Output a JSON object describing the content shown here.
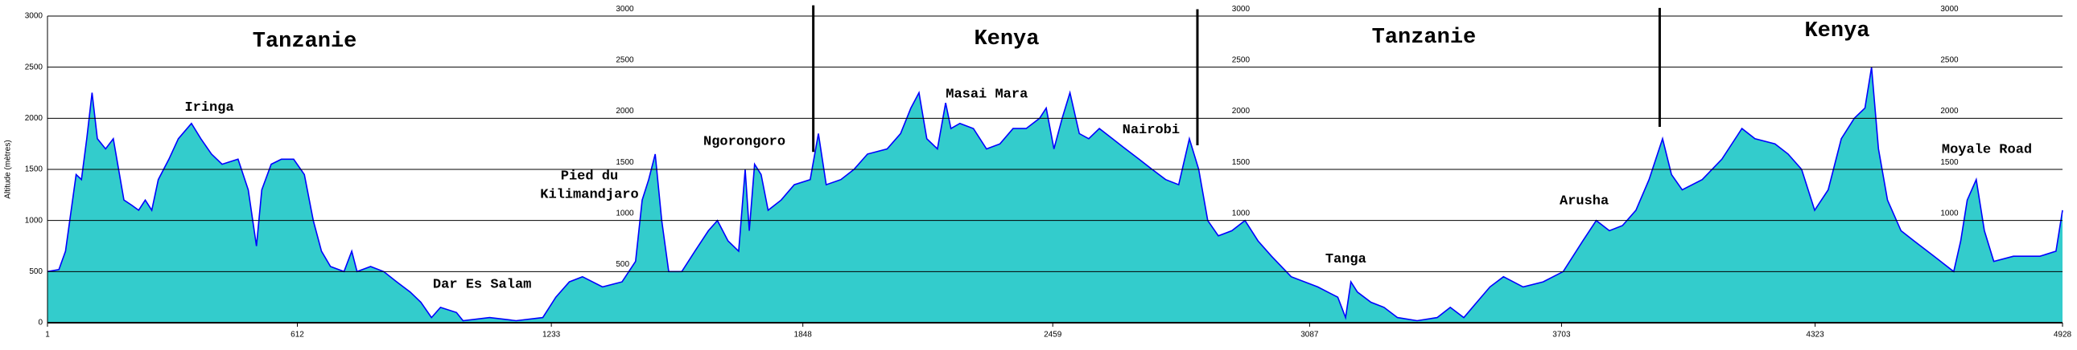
{
  "chart_data": {
    "type": "area",
    "y_label": "Altitude (mètres)",
    "color": "#33cccc",
    "line_color": "#0000ff",
    "grid": true,
    "xlim": [
      1,
      4928
    ],
    "ylim": [
      0,
      3000
    ],
    "yticks": [
      0,
      500,
      1000,
      1500,
      2000,
      2500,
      3000
    ],
    "xticks": [
      1,
      612,
      1233,
      1848,
      2459,
      3087,
      3703,
      4323,
      4928
    ],
    "x": [
      1,
      29,
      45,
      71,
      84,
      97,
      110,
      123,
      143,
      162,
      175,
      188,
      207,
      224,
      240,
      256,
      272,
      298,
      321,
      353,
      376,
      402,
      428,
      467,
      492,
      512,
      525,
      548,
      573,
      603,
      629,
      651,
      671,
      693,
      726,
      745,
      758,
      791,
      823,
      855,
      888,
      914,
      940,
      962,
      1001,
      1017,
      1082,
      1147,
      1212,
      1244,
      1277,
      1309,
      1358,
      1406,
      1439,
      1455,
      1471,
      1487,
      1503,
      1520,
      1552,
      1584,
      1617,
      1639,
      1665,
      1691,
      1707,
      1717,
      1730,
      1746,
      1763,
      1795,
      1827,
      1866,
      1886,
      1905,
      1941,
      1973,
      2006,
      2054,
      2087,
      2112,
      2132,
      2151,
      2177,
      2197,
      2210,
      2232,
      2265,
      2297,
      2330,
      2362,
      2394,
      2427,
      2443,
      2462,
      2482,
      2501,
      2524,
      2547,
      2573,
      2605,
      2637,
      2670,
      2702,
      2735,
      2767,
      2793,
      2816,
      2838,
      2864,
      2897,
      2929,
      2961,
      2994,
      3042,
      3107,
      3156,
      3175,
      3188,
      3204,
      3237,
      3269,
      3302,
      3350,
      3399,
      3431,
      3464,
      3496,
      3528,
      3561,
      3609,
      3658,
      3707,
      3755,
      3788,
      3820,
      3852,
      3885,
      3917,
      3950,
      3972,
      3998,
      4047,
      4095,
      4144,
      4176,
      4225,
      4257,
      4290,
      4322,
      4355,
      4387,
      4419,
      4445,
      4461,
      4478,
      4500,
      4533,
      4565,
      4614,
      4662,
      4679,
      4695,
      4717,
      4737,
      4760,
      4808,
      4873,
      4912,
      4928
    ],
    "values": [
      500,
      520,
      700,
      1450,
      1400,
      1800,
      2250,
      1800,
      1700,
      1800,
      1500,
      1200,
      1150,
      1100,
      1200,
      1100,
      1400,
      1600,
      1800,
      1950,
      1800,
      1650,
      1550,
      1600,
      1300,
      750,
      1300,
      1550,
      1600,
      1600,
      1450,
      1000,
      700,
      550,
      500,
      700,
      500,
      550,
      500,
      400,
      300,
      200,
      50,
      150,
      100,
      20,
      50,
      20,
      50,
      250,
      400,
      450,
      350,
      400,
      600,
      1200,
      1400,
      1650,
      1000,
      500,
      500,
      700,
      900,
      1000,
      800,
      700,
      1500,
      900,
      1550,
      1450,
      1100,
      1200,
      1350,
      1400,
      1850,
      1350,
      1400,
      1500,
      1650,
      1700,
      1850,
      2100,
      2250,
      1800,
      1700,
      2150,
      1900,
      1950,
      1900,
      1700,
      1750,
      1900,
      1900,
      2000,
      2100,
      1700,
      2000,
      2250,
      1850,
      1800,
      1900,
      1800,
      1700,
      1600,
      1500,
      1400,
      1350,
      1800,
      1500,
      1000,
      850,
      900,
      1000,
      800,
      650,
      450,
      350,
      250,
      50,
      400,
      300,
      200,
      150,
      50,
      20,
      50,
      150,
      50,
      200,
      350,
      450,
      350,
      400,
      500,
      800,
      1000,
      900,
      950,
      1100,
      1400,
      1800,
      1450,
      1300,
      1400,
      1600,
      1900,
      1800,
      1750,
      1650,
      1500,
      1100,
      1300,
      1800,
      2000,
      2100,
      2500,
      1700,
      1200,
      900,
      800,
      650,
      500,
      800,
      1200,
      1400,
      900,
      600,
      650,
      650,
      700,
      1100
    ],
    "annotations": [
      "Tanzanie",
      "Kenya",
      "Tanzanie",
      "Kenya",
      "Iringa",
      "Dar Es Salam",
      "Pied du",
      "Kilimandjaro",
      "Ngorongoro",
      "Masai Mara",
      "Nairobi",
      "Tanga",
      "Arusha",
      "Moyale Road"
    ]
  }
}
